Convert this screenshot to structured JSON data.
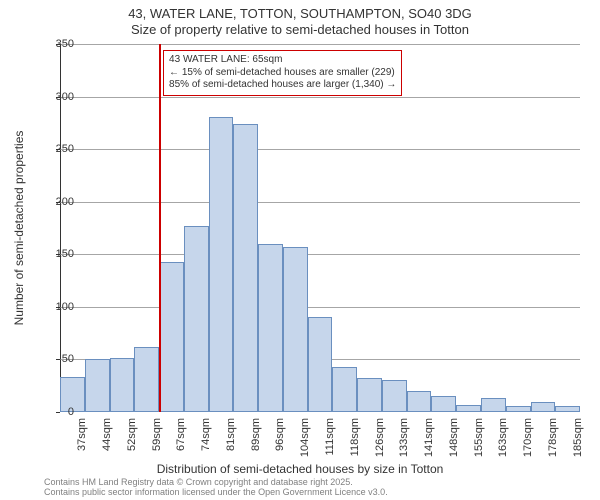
{
  "title_line1": "43, WATER LANE, TOTTON, SOUTHAMPTON, SO40 3DG",
  "title_line2": "Size of property relative to semi-detached houses in Totton",
  "y_axis_label": "Number of semi-detached properties",
  "x_axis_label": "Distribution of semi-detached houses by size in Totton",
  "footer_line1": "Contains HM Land Registry data © Crown copyright and database right 2025.",
  "footer_line2": "Contains public sector information licensed under the Open Government Licence v3.0.",
  "chart": {
    "type": "histogram",
    "ylim": [
      0,
      350
    ],
    "ytick_step": 50,
    "yticks": [
      0,
      50,
      100,
      150,
      200,
      250,
      300,
      350
    ],
    "x_categories": [
      "37sqm",
      "44sqm",
      "52sqm",
      "59sqm",
      "67sqm",
      "74sqm",
      "81sqm",
      "89sqm",
      "96sqm",
      "104sqm",
      "111sqm",
      "118sqm",
      "126sqm",
      "133sqm",
      "141sqm",
      "148sqm",
      "155sqm",
      "163sqm",
      "170sqm",
      "178sqm",
      "185sqm"
    ],
    "values": [
      33,
      50,
      51,
      62,
      143,
      177,
      281,
      274,
      160,
      157,
      90,
      43,
      32,
      30,
      20,
      15,
      7,
      13,
      6,
      10,
      6
    ],
    "bar_fill": "#c6d6eb",
    "bar_stroke": "#6a8fbf",
    "grid_color": "#808080",
    "background_color": "#ffffff",
    "reference_line": {
      "x_category": "67sqm",
      "color": "#cc0000",
      "width": 1.5
    },
    "annotation": {
      "border_color": "#cc0000",
      "background": "#ffffff",
      "lines": [
        "43 WATER LANE: 65sqm",
        "← 15% of semi-detached houses are smaller (229)",
        "85% of semi-detached houses are larger (1,340) →"
      ]
    },
    "title_fontsize": 13,
    "axis_label_fontsize": 12,
    "tick_fontsize": 11,
    "annotation_fontsize": 10,
    "footer_fontsize": 9
  }
}
